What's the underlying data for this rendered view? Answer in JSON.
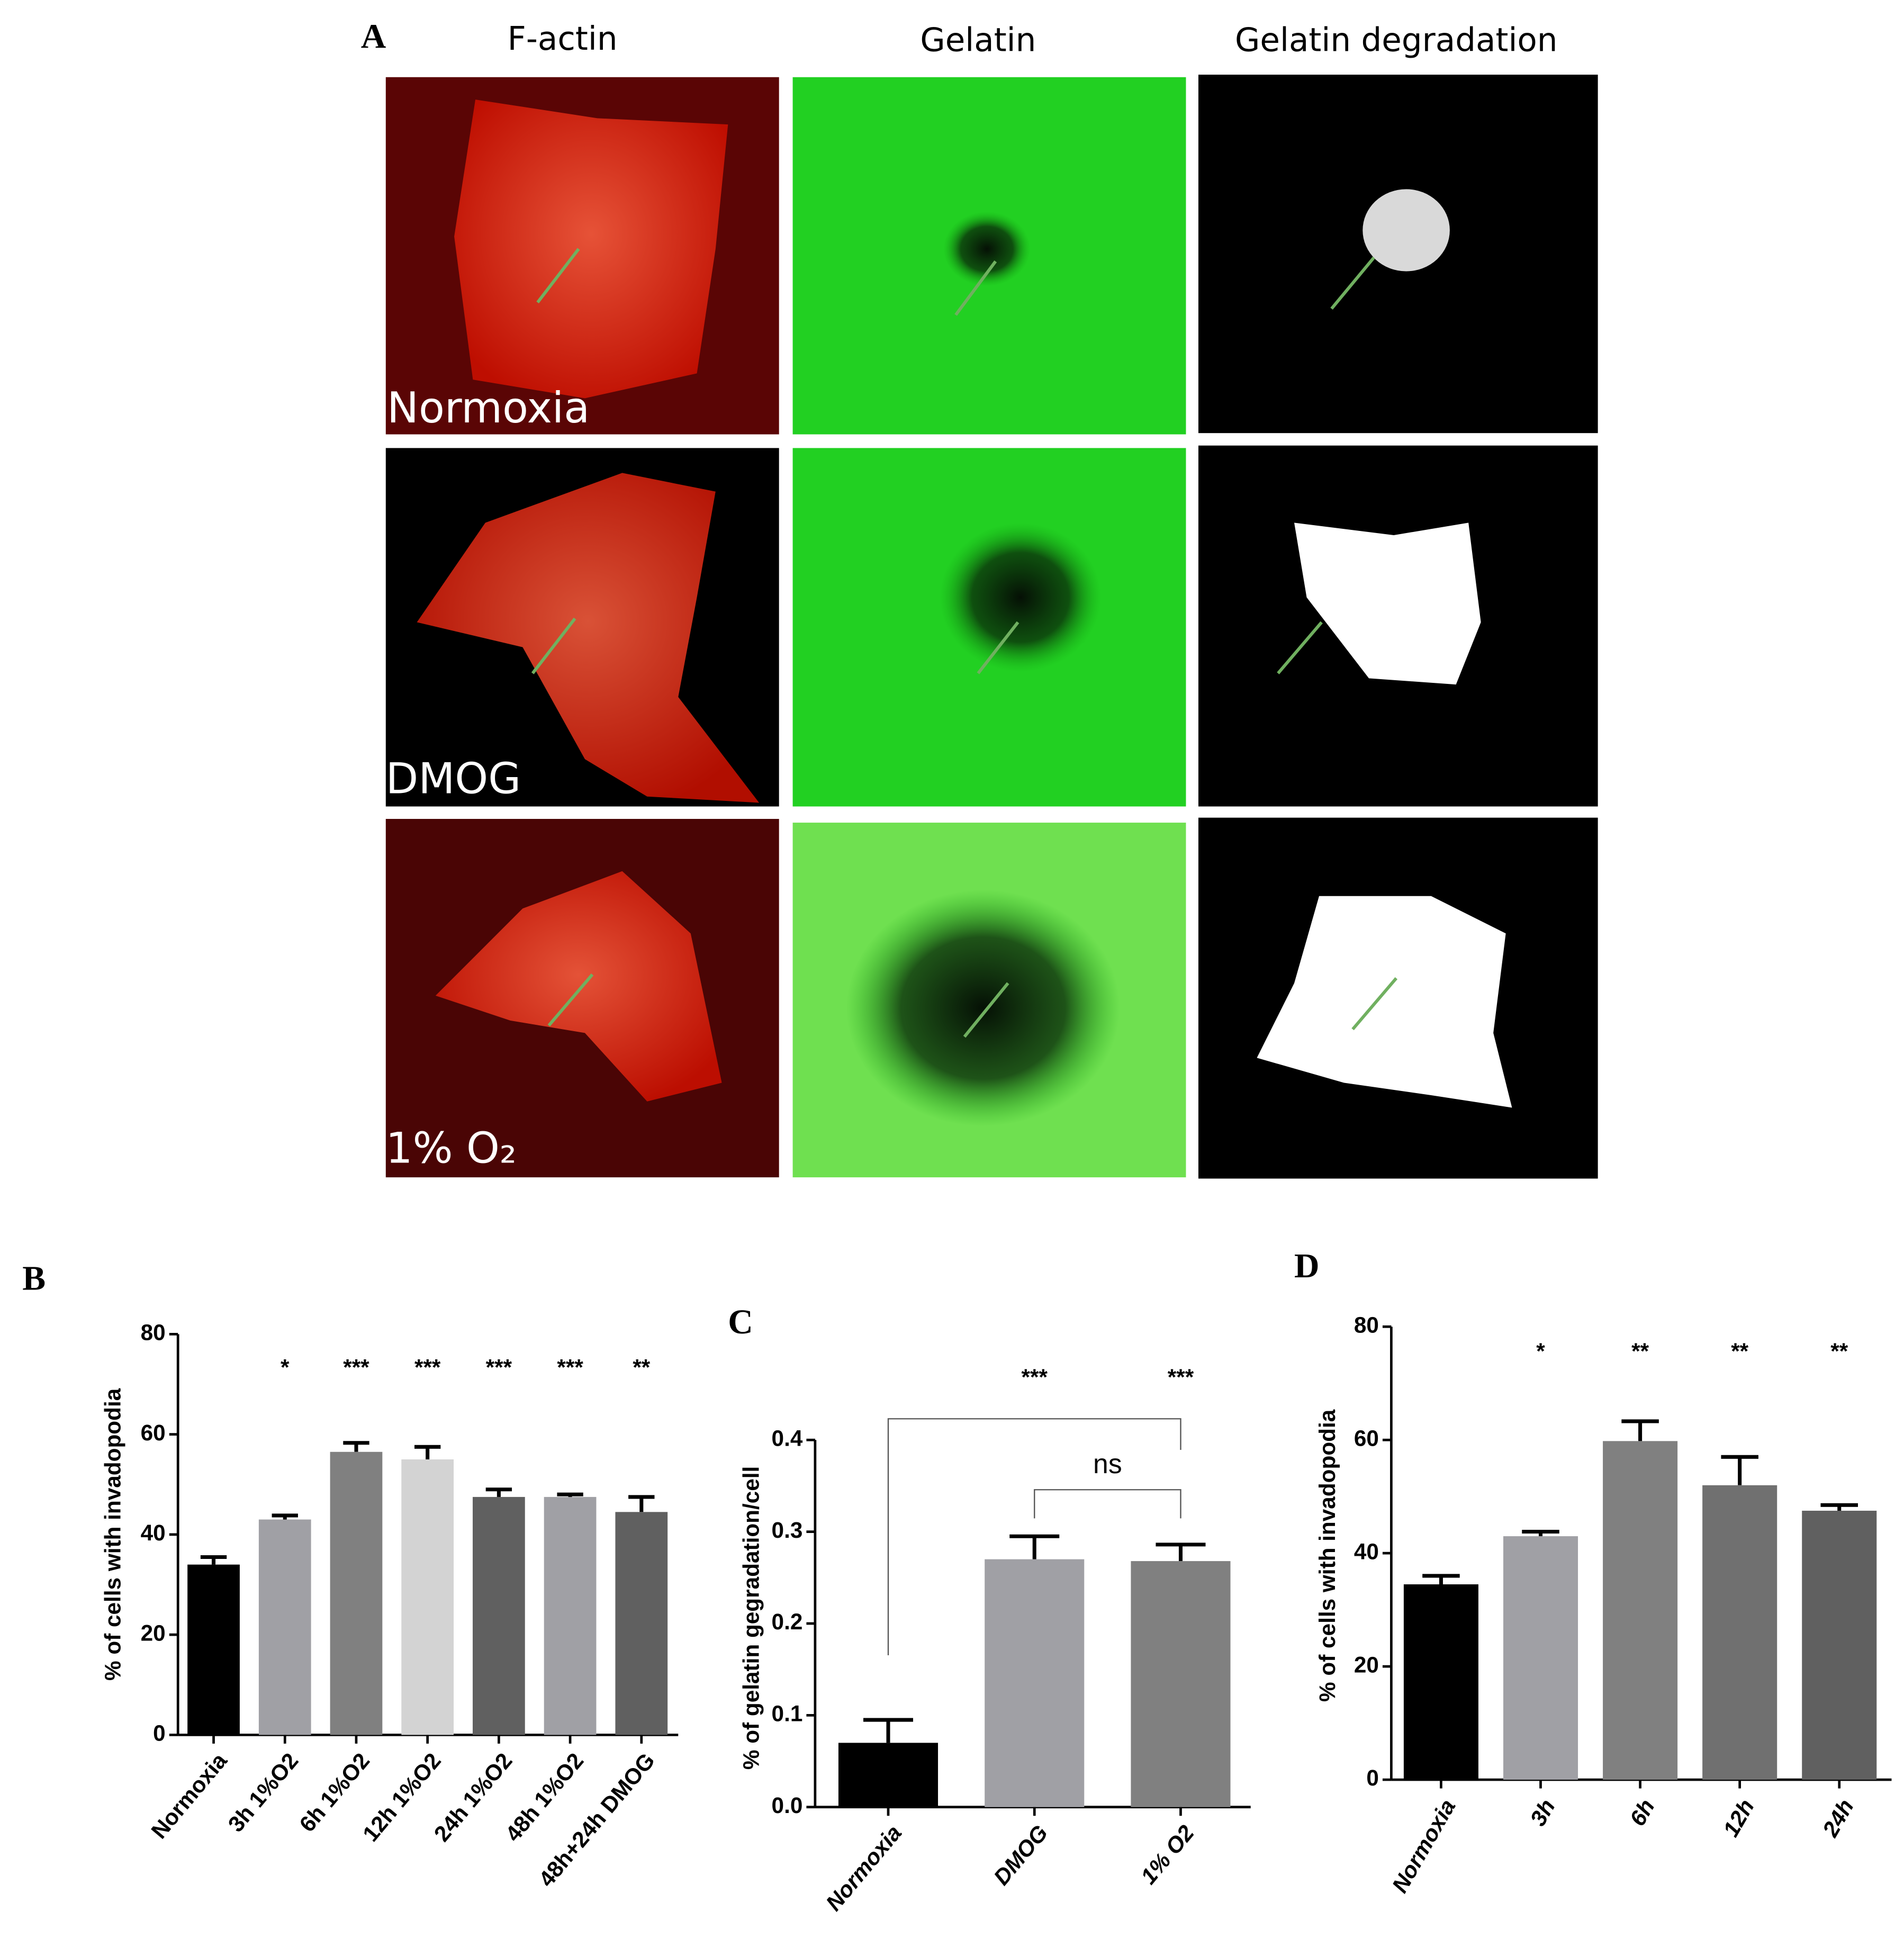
{
  "panel_a": {
    "letter": "A",
    "columns": [
      "F-actin",
      "Gelatin",
      "Gelatin degradation"
    ],
    "rows": [
      "Normoxia",
      "DMOG",
      "1% O₂"
    ]
  },
  "chart_data": [
    {
      "type": "bar",
      "letter": "B",
      "y_label": "% of cells with invadopodia",
      "categories": [
        "Normoxia",
        "3h 1%O2",
        "6h 1%O2",
        "12h 1%O2",
        "24h 1%O2",
        "48h 1%O2",
        "48h+24h DMOG"
      ],
      "values": [
        34,
        43,
        56.5,
        55,
        47.5,
        47.5,
        44.5
      ],
      "errors": [
        1.5,
        0.8,
        1.8,
        2.5,
        1.5,
        0.5,
        3
      ],
      "significance": [
        null,
        "*",
        "***",
        "***",
        "***",
        "***",
        "**"
      ],
      "colors": [
        "#000000",
        "#a0a0a5",
        "#808080",
        "#d3d3d3",
        "#606060",
        "#a0a0a5",
        "#606060"
      ],
      "ylim": [
        0,
        80
      ],
      "yticks": [
        0,
        20,
        40,
        60,
        80
      ]
    },
    {
      "type": "bar",
      "letter": "C",
      "y_label": "% of gelatin gegradation/cell",
      "categories": [
        "Normoxia",
        "DMOG",
        "1% O2"
      ],
      "values": [
        0.07,
        0.27,
        0.268
      ],
      "errors": [
        0.025,
        0.025,
        0.018
      ],
      "significance": [
        null,
        "***",
        "***"
      ],
      "annotations": [
        "ns"
      ],
      "colors": [
        "#000000",
        "#a0a0a5",
        "#808080"
      ],
      "ylim": [
        0,
        0.4
      ],
      "yticks": [
        {
          "value": 0,
          "label": "0.0"
        },
        0.1,
        0.2,
        0.3,
        0.4
      ]
    },
    {
      "type": "bar",
      "letter": "D",
      "y_label": "% of cells with invadopodia",
      "categories": [
        "Normoxia",
        "3h",
        "6h",
        "12h",
        "24h"
      ],
      "values": [
        34.5,
        43,
        59.8,
        52,
        47.5
      ],
      "errors": [
        1.5,
        0.8,
        3.5,
        5,
        1
      ],
      "significance": [
        null,
        "*",
        "**",
        "**",
        "**"
      ],
      "colors": [
        "#000000",
        "#a0a0a5",
        "#808080",
        "#707070",
        "#606060"
      ],
      "ylim": [
        0,
        80
      ],
      "yticks": [
        0,
        20,
        40,
        60,
        80
      ]
    }
  ]
}
